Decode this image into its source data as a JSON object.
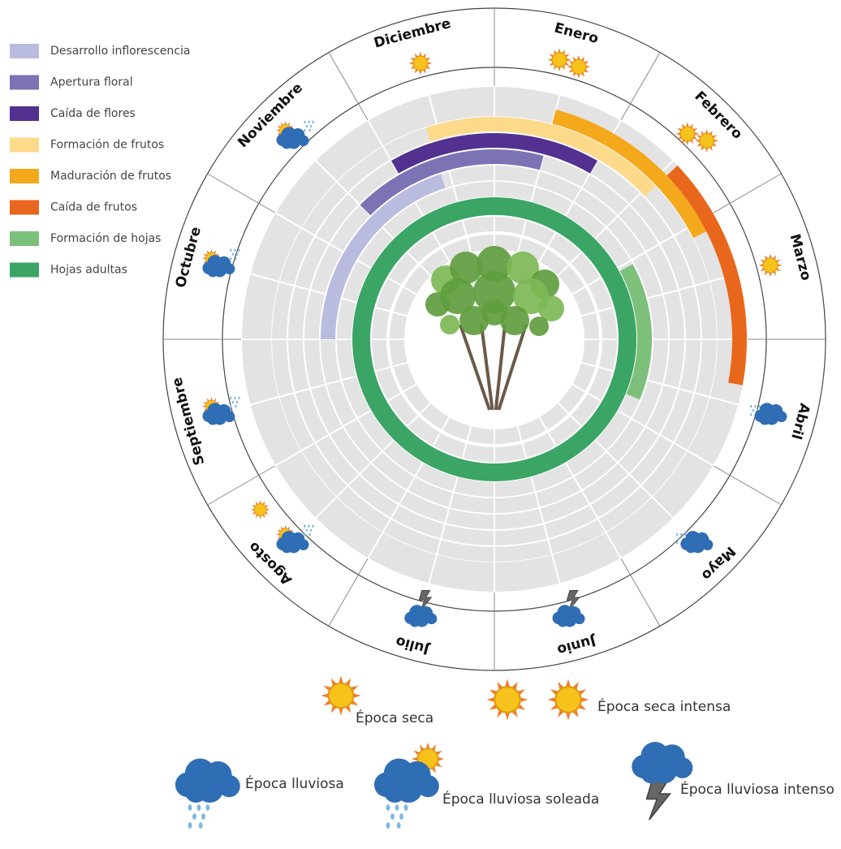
{
  "phases": [
    {
      "label": "Desarrollo inflorescencia",
      "color": "#b9bcdf",
      "start": 9.0,
      "end": 11.4
    },
    {
      "label": "Apertura floral",
      "color": "#7b73b3",
      "start": 10.5,
      "end": 0.5
    },
    {
      "label": "Caída de flores",
      "color": "#523190",
      "start": 11.0,
      "end": 1.0
    },
    {
      "label": "Formación de frutos",
      "color": "#fdd98a",
      "start": 11.4,
      "end": 1.55
    },
    {
      "label": "Maduración de frutos",
      "color": "#f4a81c",
      "start": 0.5,
      "end": 2.1
    },
    {
      "label": "Caída de frutos",
      "color": "#e8671c",
      "start": 1.55,
      "end": 3.35
    },
    {
      "label": "Formación de hojas",
      "color": "#7cc07c",
      "start": 2.05,
      "end": 3.75
    },
    {
      "label": "Hojas adultas",
      "color": "#3aa565",
      "start": 0,
      "end": 12
    }
  ],
  "months": [
    "Enero",
    "Febrero",
    "Marzo",
    "Abril",
    "Mayo",
    "Junio",
    "Julio",
    "Agosto",
    "Septiembre",
    "Octubre",
    "Noviembre",
    "Diciembre"
  ],
  "weather_legend": [
    "Época seca",
    "Época seca intensa",
    "Época lluviosa",
    "Época lluviosa soleada",
    "Época lluviosa intenso"
  ]
}
